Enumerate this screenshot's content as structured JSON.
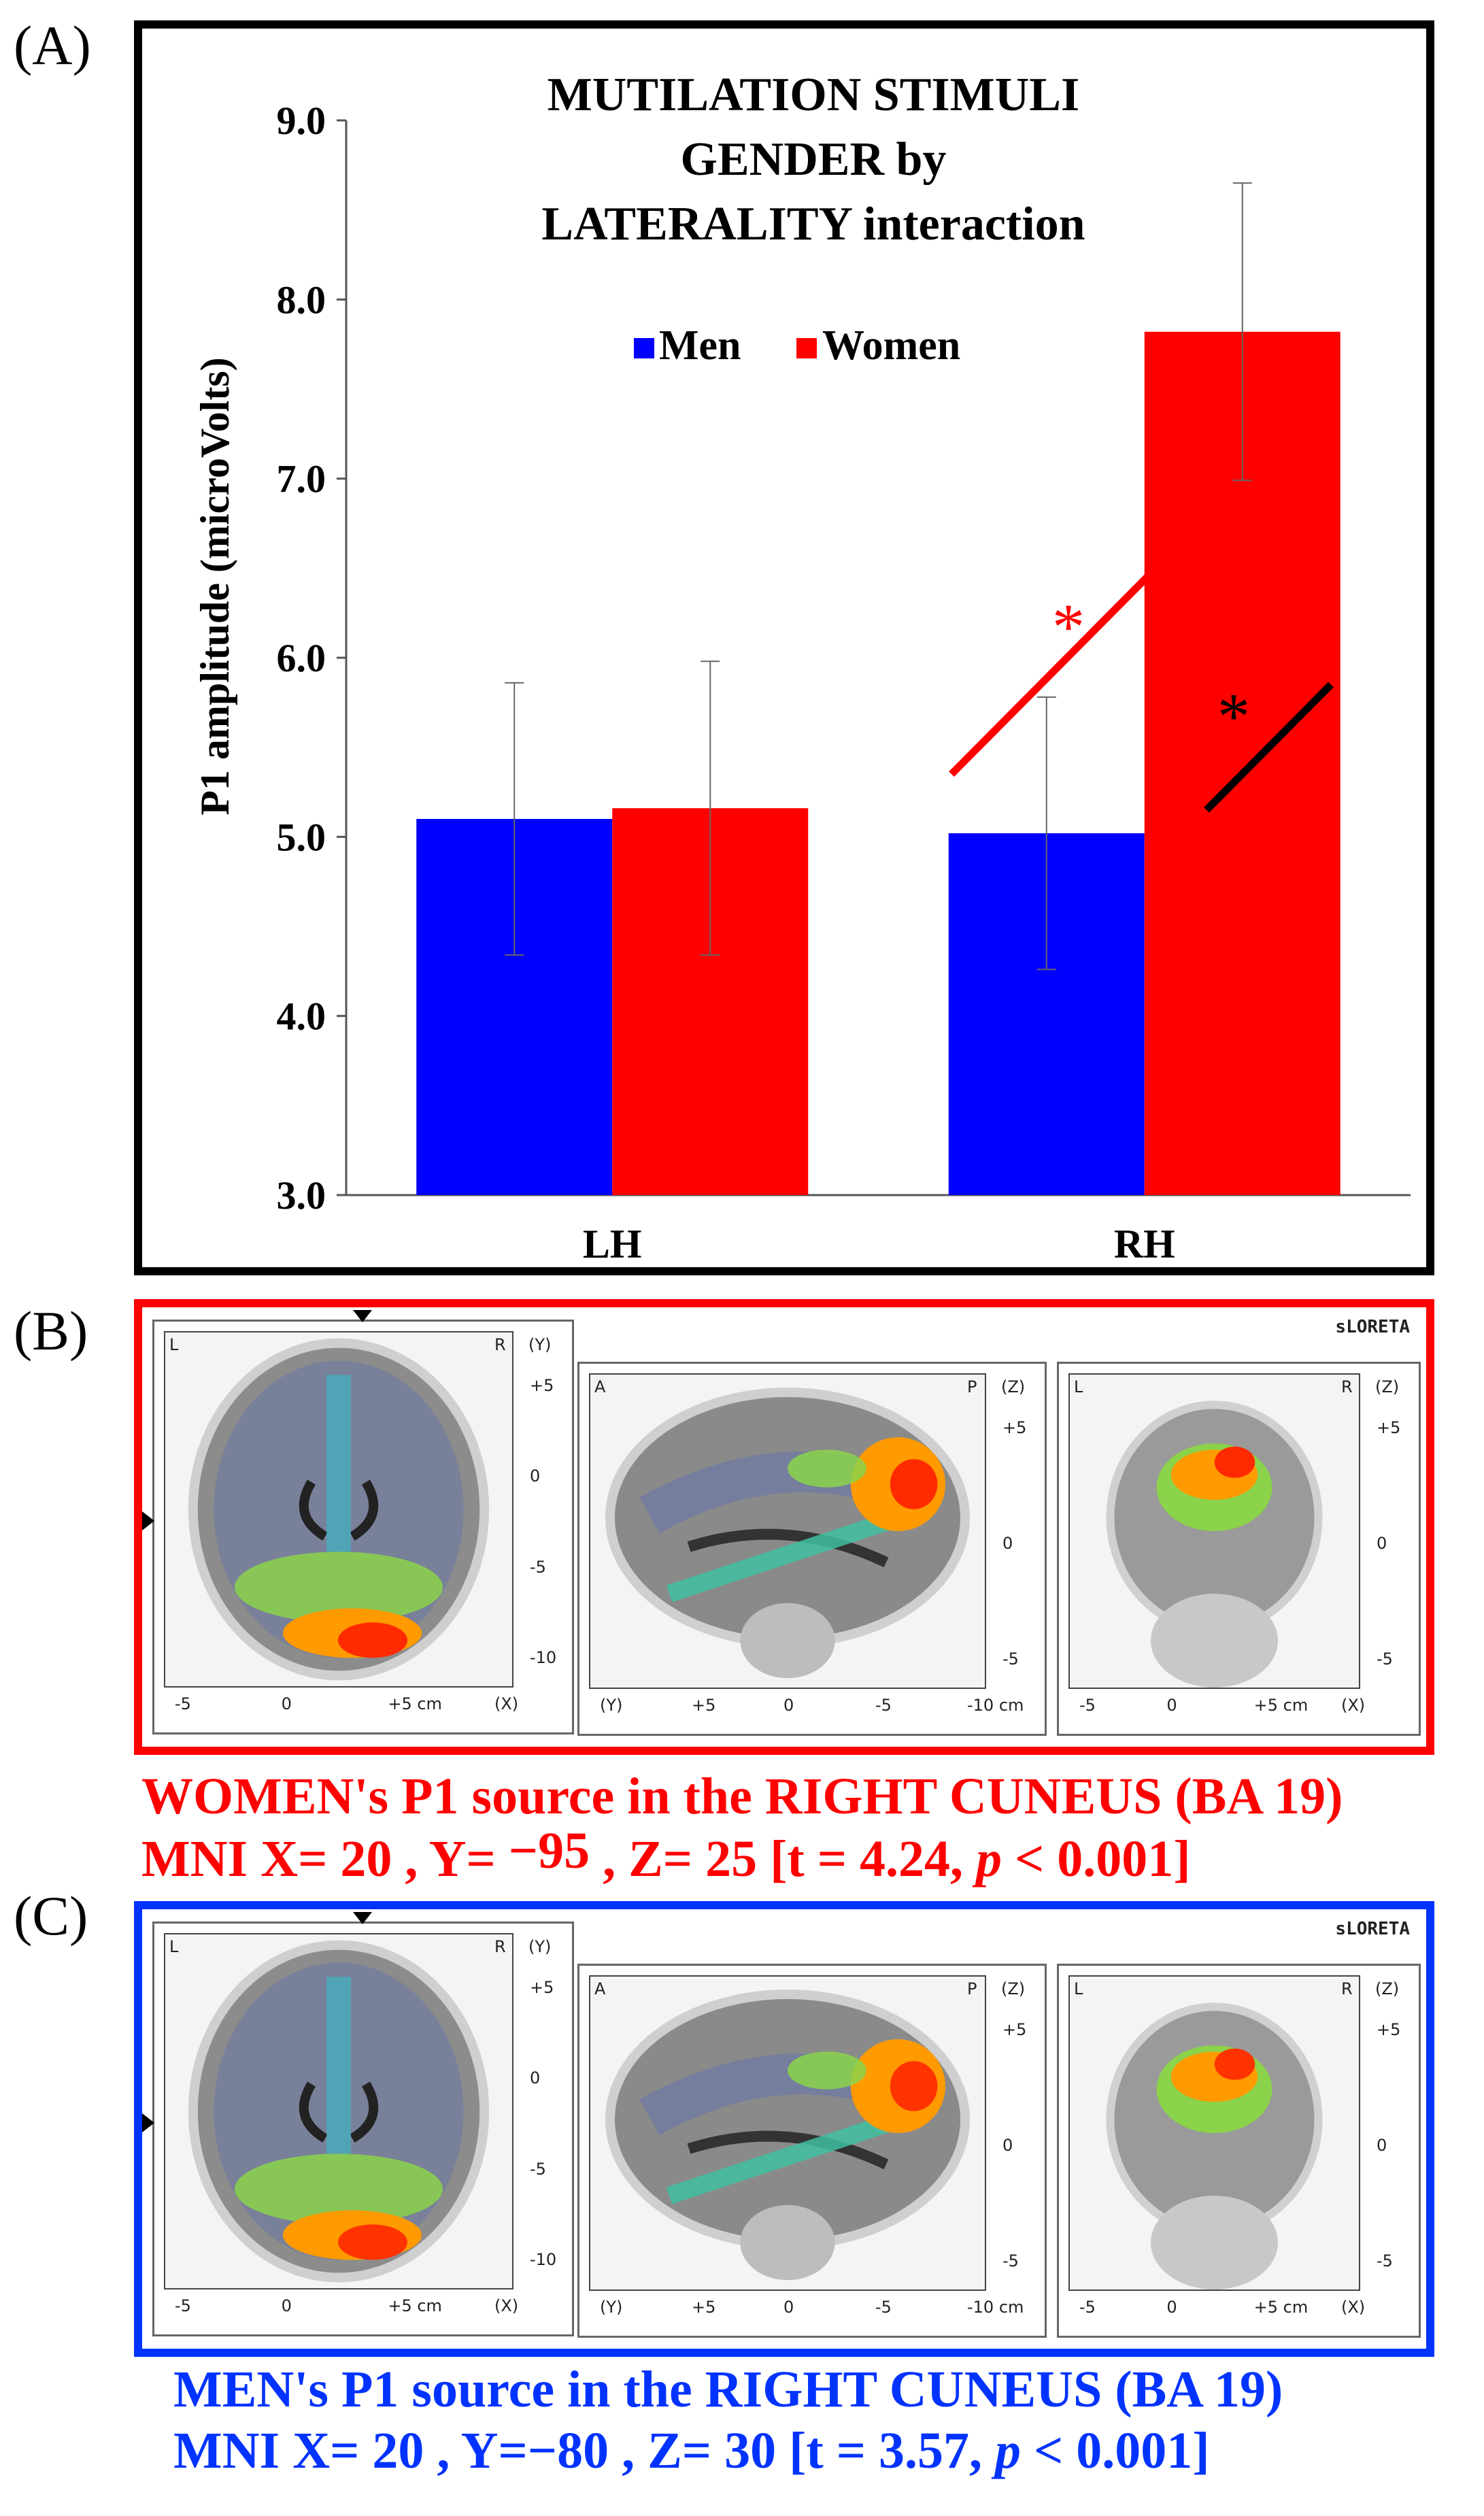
{
  "panel_labels": {
    "a": "(A)",
    "b": "(B)",
    "c": "(C)"
  },
  "chart_data": {
    "type": "bar",
    "title_lines": [
      "MUTILATION STIMULI",
      "GENDER by",
      "LATERALITY interaction"
    ],
    "categories": [
      "LH",
      "RH"
    ],
    "series": [
      {
        "name": "Men",
        "color": "#0000ff",
        "values": [
          5.1,
          5.02
        ],
        "errors": [
          0.76,
          0.76
        ]
      },
      {
        "name": "Women",
        "color": "#ff0000",
        "values": [
          5.16,
          7.82
        ],
        "errors": [
          0.82,
          0.83
        ]
      }
    ],
    "ylabel": "P1 amplitude (microVolts)",
    "ylim": [
      3.0,
      9.0
    ],
    "yticks": [
      "3.0",
      "4.0",
      "5.0",
      "6.0",
      "7.0",
      "8.0",
      "9.0"
    ],
    "annotations": [
      {
        "text": "*",
        "color": "#ff0000",
        "between": "Women LH vs Women RH"
      },
      {
        "text": "*",
        "color": "#000000",
        "between": "Men RH vs Women RH"
      }
    ],
    "legend_position": "upper-center"
  },
  "brain_panels": [
    {
      "tag": "sLORETA",
      "frame_color": "#ff0000",
      "axial": {
        "corner_left": "L",
        "corner_right": "R",
        "axis": "(Y)",
        "ticks": [
          "+5",
          "0",
          "-5",
          "-10"
        ],
        "bottom_ticks": [
          "-5",
          "0",
          "+5 cm",
          "(X)"
        ]
      },
      "sagittal": {
        "corner_left": "A",
        "corner_right": "P",
        "axis": "(Z)",
        "ticks": [
          "+5",
          "0",
          "-5"
        ],
        "bottom_ticks": [
          "(Y)",
          "+5",
          "0",
          "-5",
          "-10 cm"
        ]
      },
      "coronal": {
        "corner_left": "L",
        "corner_right": "R",
        "axis": "(Z)",
        "ticks": [
          "+5",
          "0",
          "-5"
        ],
        "bottom_ticks": [
          "-5",
          "0",
          "+5 cm",
          "(X)"
        ]
      },
      "caption_line1": "WOMEN's P1 source in the RIGHT CUNEUS (BA 19)",
      "caption_line2_pre": "MNI  X= 20 , Y= ",
      "caption_y_value": "−95",
      "caption_line2_mid": " , Z= 25 [t = 4.24, ",
      "caption_p": "p",
      "caption_line2_post": " < 0.001]",
      "caption_color": "#ff0000"
    },
    {
      "tag": "sLORETA",
      "frame_color": "#0033ff",
      "axial": {
        "corner_left": "L",
        "corner_right": "R",
        "axis": "(Y)",
        "ticks": [
          "+5",
          "0",
          "-5",
          "-10"
        ],
        "bottom_ticks": [
          "-5",
          "0",
          "+5 cm",
          "(X)"
        ]
      },
      "sagittal": {
        "corner_left": "A",
        "corner_right": "P",
        "axis": "(Z)",
        "ticks": [
          "+5",
          "0",
          "-5"
        ],
        "bottom_ticks": [
          "(Y)",
          "+5",
          "0",
          "-5",
          "-10 cm"
        ]
      },
      "coronal": {
        "corner_left": "L",
        "corner_right": "R",
        "axis": "(Z)",
        "ticks": [
          "+5",
          "0",
          "-5"
        ],
        "bottom_ticks": [
          "-5",
          "0",
          "+5 cm",
          "(X)"
        ]
      },
      "caption_line1": "MEN's P1 source in the RIGHT CUNEUS (BA 19)",
      "caption_line2_pre": "MNI  X= 20 , Y=",
      "caption_y_value": "−80",
      "caption_line2_mid": " , Z= 30 [t = 3.57, ",
      "caption_p": "p",
      "caption_line2_post": " < 0.001]",
      "caption_color": "#0033ff"
    }
  ]
}
